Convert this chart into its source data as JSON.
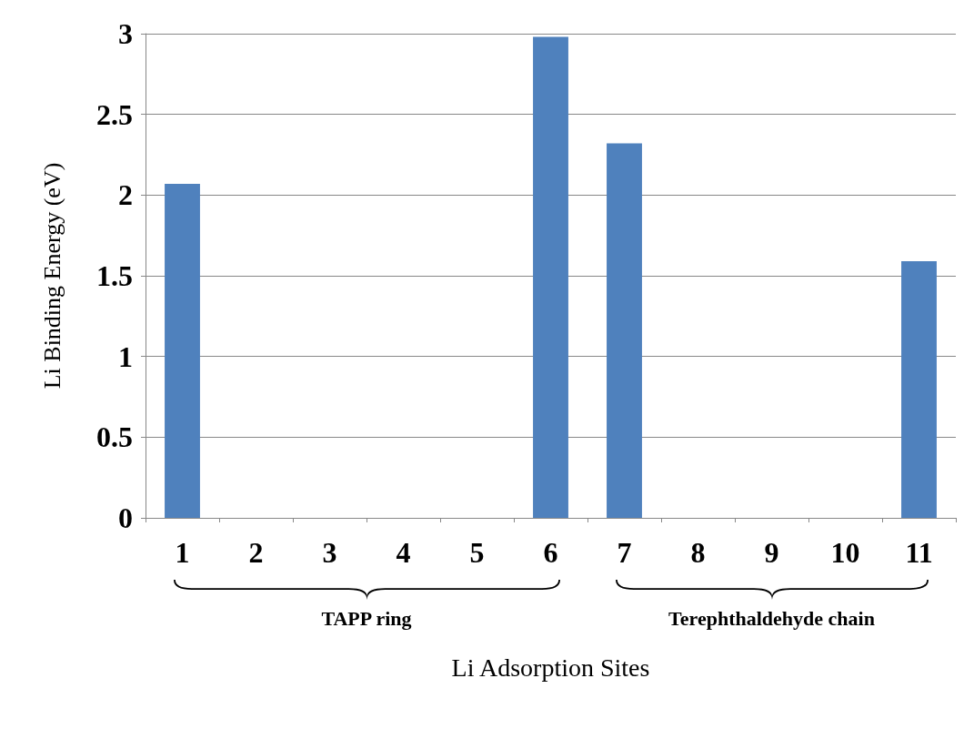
{
  "chart_data": {
    "type": "bar",
    "xlabel": "Li Adsorption Sites",
    "ylabel": "Li Binding Energy (eV)",
    "categories": [
      "1",
      "2",
      "3",
      "4",
      "5",
      "6",
      "7",
      "8",
      "9",
      "10",
      "11"
    ],
    "values": [
      2.07,
      0,
      0,
      0,
      0,
      2.98,
      2.32,
      0,
      0,
      0,
      1.59
    ],
    "color": "#4f81bd",
    "ylim": [
      0,
      3
    ],
    "yticks": [
      0,
      0.5,
      1,
      1.5,
      2,
      2.5,
      3
    ],
    "grid": "y",
    "annotations": [
      "TAPP ring",
      "Terephthaldehyde chain"
    ]
  }
}
